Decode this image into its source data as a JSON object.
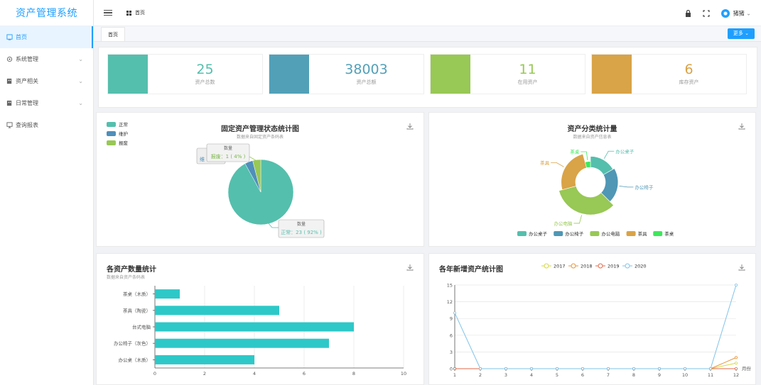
{
  "app": {
    "title": "资产管理系统"
  },
  "sidebar": {
    "items": [
      {
        "label": "首页",
        "active": true,
        "has_children": false
      },
      {
        "label": "系统管理",
        "has_children": true
      },
      {
        "label": "资产相关",
        "has_children": true
      },
      {
        "label": "日常管理",
        "has_children": true
      },
      {
        "label": "查询报表",
        "has_children": false
      }
    ]
  },
  "topbar": {
    "breadcrumb": "首页",
    "username": "猪猪"
  },
  "tabs": {
    "active": "首页",
    "more_label": "更多"
  },
  "stats": [
    {
      "value": "25",
      "label": "资产总数",
      "color": "#54bfad"
    },
    {
      "value": "38003",
      "label": "资产总额",
      "color": "#52a0b8"
    },
    {
      "value": "11",
      "label": "在用资产",
      "color": "#98c855"
    },
    {
      "value": "6",
      "label": "库存资产",
      "color": "#d9a347"
    }
  ],
  "pie_panel": {
    "title": "固定资产管理状态统计图",
    "subtitle": "数据来自固定资产条码表",
    "tooltip_top_title": "数量",
    "tooltip_top_value": "报废：1 ( 4% )",
    "tooltip_top_behind": "维",
    "tooltip_bottom_title": "数量",
    "tooltip_bottom_value": "正常：23 ( 92% )"
  },
  "donut_panel": {
    "title": "资产分类统计量",
    "subtitle": "数据来自资产信息表"
  },
  "bar_panel": {
    "title": "各资产数量统计",
    "subtitle": "数据来自资产条码表"
  },
  "line_panel": {
    "title": "各年新增资产统计图",
    "x_unit": "月份"
  },
  "chart_data": [
    {
      "type": "pie",
      "title": "固定资产管理状态统计图",
      "subtitle": "数据来自固定资产条码表",
      "categories": [
        "正常",
        "维护",
        "报废"
      ],
      "values": [
        23,
        1,
        1
      ],
      "colors": [
        "#54bfad",
        "#4f8fba",
        "#98c855"
      ],
      "legend_position": "top-left"
    },
    {
      "type": "pie",
      "title": "资产分类统计量",
      "subtitle": "数据来自资产信息表",
      "categories": [
        "办公桌子",
        "办公椅子",
        "办公电脑",
        "茶具",
        "茶桌"
      ],
      "values": [
        4,
        5,
        8,
        6,
        1
      ],
      "colors": [
        "#54bfad",
        "#4f97b5",
        "#98c855",
        "#d9a347",
        "#3ee85a"
      ],
      "legend_position": "bottom"
    },
    {
      "type": "bar",
      "orientation": "horizontal",
      "title": "各资产数量统计",
      "subtitle": "数据来自资产条码表",
      "categories": [
        "茶桌（木质）",
        "茶具（陶瓷）",
        "台式电脑",
        "办公椅子（灰色）",
        "办公桌（木质）"
      ],
      "values": [
        1,
        5,
        8,
        7,
        4
      ],
      "xlim": [
        0,
        10
      ],
      "xticks": [
        0,
        2,
        4,
        6,
        8,
        10
      ],
      "color": "#2ec8c8",
      "grid": true
    },
    {
      "type": "line",
      "title": "各年新增资产统计图",
      "x": [
        1,
        2,
        3,
        4,
        5,
        6,
        7,
        8,
        9,
        10,
        11,
        12
      ],
      "xlabel": "月份",
      "ylim": [
        0,
        15
      ],
      "yticks": [
        0,
        3,
        6,
        9,
        12,
        15
      ],
      "legend_position": "top",
      "series": [
        {
          "name": "2017",
          "values": [
            0,
            0,
            0,
            0,
            0,
            0,
            0,
            0,
            0,
            0,
            0,
            1
          ],
          "color": "#d4d93c"
        },
        {
          "name": "2018",
          "values": [
            0,
            0,
            0,
            0,
            0,
            0,
            0,
            0,
            0,
            0,
            0,
            2
          ],
          "color": "#e8943a"
        },
        {
          "name": "2019",
          "values": [
            0,
            0,
            0,
            0,
            0,
            0,
            0,
            0,
            0,
            0,
            0,
            0
          ],
          "color": "#e06a4a"
        },
        {
          "name": "2020",
          "values": [
            10,
            0,
            0,
            0,
            0,
            0,
            0,
            0,
            0,
            0,
            0,
            15
          ],
          "color": "#7ec3ea"
        }
      ]
    }
  ]
}
